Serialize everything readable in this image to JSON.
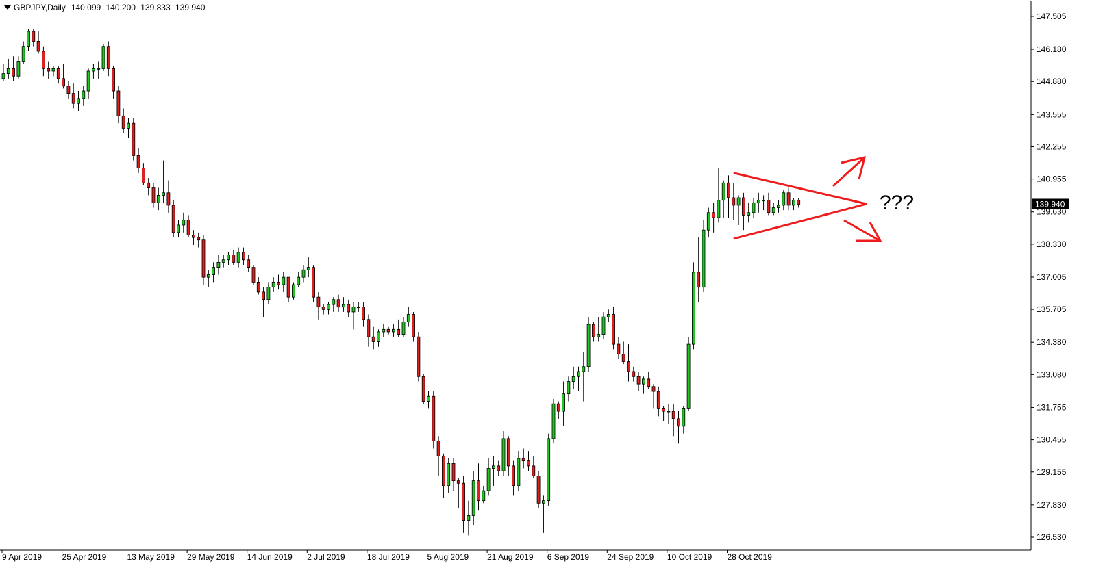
{
  "header": {
    "symbol": "GBPJPY,Daily",
    "open": "140.099",
    "high": "140.200",
    "low": "139.833",
    "close": "139.940"
  },
  "annotation_text": "???",
  "current_price_label": "139.940",
  "colors": {
    "up_body": "#22c822",
    "down_body": "#dd2020",
    "wick": "#000000",
    "annotation": "#ee1c1c",
    "price_tag_bg": "#000000"
  },
  "chart_data": {
    "type": "candlestick",
    "symbol": "GBPJPY",
    "timeframe": "Daily",
    "ylim": [
      126.3,
      147.9
    ],
    "y_ticks": [
      "147.505",
      "146.180",
      "144.880",
      "143.555",
      "142.255",
      "140.955",
      "139.630",
      "138.330",
      "137.005",
      "135.705",
      "134.380",
      "133.080",
      "131.755",
      "130.455",
      "129.155",
      "127.830",
      "126.530"
    ],
    "x_tick_labels": [
      "9 Apr 2019",
      "25 Apr 2019",
      "13 May 2019",
      "29 May 2019",
      "14 Jun 2019",
      "2 Jul 2019",
      "18 Jul 2019",
      "5 Aug 2019",
      "21 Aug 2019",
      "6 Sep 2019",
      "24 Sep 2019",
      "10 Oct 2019",
      "28 Oct 2019"
    ],
    "x_tick_candle_index": [
      0,
      12,
      25,
      37,
      49,
      61,
      73,
      85,
      97,
      109,
      121,
      133,
      145
    ],
    "candles": [
      [
        145.0,
        145.6,
        144.9,
        145.2
      ],
      [
        145.2,
        145.8,
        145.0,
        145.4
      ],
      [
        145.4,
        145.9,
        144.9,
        145.1
      ],
      [
        145.1,
        145.9,
        145.0,
        145.7
      ],
      [
        145.7,
        146.5,
        145.6,
        146.3
      ],
      [
        146.3,
        147.0,
        146.1,
        146.9
      ],
      [
        146.9,
        147.0,
        146.3,
        146.5
      ],
      [
        146.5,
        146.9,
        146.0,
        146.1
      ],
      [
        146.1,
        146.3,
        145.1,
        145.4
      ],
      [
        145.4,
        145.7,
        145.0,
        145.3
      ],
      [
        145.3,
        145.5,
        145.1,
        145.4
      ],
      [
        145.4,
        145.5,
        144.8,
        145.0
      ],
      [
        145.0,
        145.6,
        144.6,
        144.7
      ],
      [
        144.7,
        144.9,
        144.2,
        144.4
      ],
      [
        144.4,
        144.8,
        143.8,
        144.0
      ],
      [
        144.0,
        144.5,
        143.7,
        144.2
      ],
      [
        144.2,
        144.7,
        143.9,
        144.5
      ],
      [
        144.5,
        145.4,
        144.2,
        145.3
      ],
      [
        145.3,
        145.6,
        145.0,
        145.4
      ],
      [
        145.4,
        145.7,
        145.0,
        145.4
      ],
      [
        145.4,
        146.4,
        145.3,
        146.3
      ],
      [
        146.3,
        146.5,
        145.1,
        145.4
      ],
      [
        145.4,
        145.5,
        144.2,
        144.5
      ],
      [
        144.5,
        144.7,
        143.2,
        143.5
      ],
      [
        143.5,
        143.8,
        142.8,
        143.0
      ],
      [
        143.0,
        143.4,
        142.6,
        143.2
      ],
      [
        143.2,
        143.4,
        141.7,
        141.9
      ],
      [
        141.9,
        142.2,
        141.2,
        141.4
      ],
      [
        141.4,
        141.6,
        140.7,
        140.8
      ],
      [
        140.8,
        141.0,
        140.3,
        140.6
      ],
      [
        140.6,
        140.8,
        139.8,
        140.0
      ],
      [
        140.0,
        140.6,
        139.7,
        140.3
      ],
      [
        140.3,
        141.7,
        140.0,
        140.4
      ],
      [
        140.4,
        140.9,
        139.6,
        139.9
      ],
      [
        139.9,
        140.1,
        138.6,
        138.8
      ],
      [
        138.8,
        139.3,
        138.6,
        139.1
      ],
      [
        139.1,
        139.6,
        138.8,
        139.3
      ],
      [
        139.3,
        139.5,
        138.6,
        138.7
      ],
      [
        138.7,
        138.9,
        138.3,
        138.6
      ],
      [
        138.6,
        138.8,
        138.2,
        138.5
      ],
      [
        138.5,
        138.7,
        136.7,
        137.0
      ],
      [
        137.0,
        137.3,
        136.6,
        137.1
      ],
      [
        137.1,
        137.6,
        136.8,
        137.4
      ],
      [
        137.4,
        137.9,
        137.1,
        137.6
      ],
      [
        137.6,
        137.9,
        137.4,
        137.7
      ],
      [
        137.7,
        138.0,
        137.5,
        137.9
      ],
      [
        137.9,
        138.1,
        137.5,
        137.6
      ],
      [
        137.6,
        138.2,
        137.4,
        138.0
      ],
      [
        138.0,
        138.2,
        137.5,
        137.7
      ],
      [
        137.7,
        137.9,
        137.2,
        137.4
      ],
      [
        137.4,
        137.5,
        136.7,
        136.8
      ],
      [
        136.8,
        137.0,
        136.3,
        136.4
      ],
      [
        136.4,
        136.6,
        135.4,
        136.1
      ],
      [
        136.1,
        136.8,
        135.9,
        136.6
      ],
      [
        136.6,
        137.0,
        136.4,
        136.8
      ],
      [
        136.8,
        137.1,
        136.5,
        136.7
      ],
      [
        136.7,
        137.2,
        136.4,
        137.0
      ],
      [
        137.0,
        137.0,
        136.0,
        136.2
      ],
      [
        136.2,
        136.8,
        136.1,
        136.7
      ],
      [
        136.7,
        137.2,
        136.6,
        137.0
      ],
      [
        137.0,
        137.5,
        136.8,
        137.3
      ],
      [
        137.3,
        137.8,
        137.0,
        137.4
      ],
      [
        137.4,
        137.5,
        136.0,
        136.2
      ],
      [
        136.2,
        136.4,
        135.3,
        135.8
      ],
      [
        135.8,
        135.9,
        135.5,
        135.7
      ],
      [
        135.7,
        136.0,
        135.5,
        135.9
      ],
      [
        135.9,
        136.2,
        135.6,
        136.1
      ],
      [
        136.1,
        136.3,
        135.6,
        135.8
      ],
      [
        135.8,
        136.2,
        135.6,
        135.9
      ],
      [
        135.9,
        136.1,
        135.4,
        135.6
      ],
      [
        135.6,
        136.0,
        134.9,
        135.8
      ],
      [
        135.8,
        136.0,
        135.6,
        135.8
      ],
      [
        135.8,
        136.0,
        135.0,
        135.3
      ],
      [
        135.3,
        135.5,
        134.2,
        134.6
      ],
      [
        134.6,
        135.0,
        134.1,
        134.4
      ],
      [
        134.4,
        134.9,
        134.2,
        134.8
      ],
      [
        134.8,
        135.1,
        134.6,
        134.9
      ],
      [
        134.9,
        135.0,
        134.7,
        134.8
      ],
      [
        134.8,
        135.1,
        134.6,
        134.9
      ],
      [
        134.9,
        135.3,
        134.6,
        134.7
      ],
      [
        134.7,
        135.4,
        134.6,
        135.2
      ],
      [
        135.2,
        135.8,
        135.0,
        135.5
      ],
      [
        135.5,
        135.6,
        134.4,
        134.6
      ],
      [
        134.6,
        134.8,
        132.8,
        133.0
      ],
      [
        133.0,
        133.1,
        131.9,
        132.0
      ],
      [
        132.0,
        132.4,
        131.7,
        132.2
      ],
      [
        132.2,
        132.4,
        130.1,
        130.4
      ],
      [
        130.4,
        130.6,
        129.0,
        129.8
      ],
      [
        129.8,
        129.9,
        128.1,
        128.6
      ],
      [
        128.6,
        129.7,
        128.3,
        129.5
      ],
      [
        129.5,
        129.7,
        128.4,
        128.8
      ],
      [
        128.8,
        128.9,
        127.7,
        128.7
      ],
      [
        128.7,
        129.0,
        126.7,
        127.2
      ],
      [
        127.2,
        128.0,
        126.6,
        127.4
      ],
      [
        127.4,
        129.2,
        127.0,
        128.8
      ],
      [
        128.8,
        129.5,
        127.6,
        128.0
      ],
      [
        128.0,
        128.6,
        127.9,
        128.4
      ],
      [
        128.4,
        129.7,
        128.2,
        129.3
      ],
      [
        129.3,
        129.8,
        128.6,
        129.4
      ],
      [
        129.4,
        129.6,
        129.0,
        129.2
      ],
      [
        129.2,
        130.8,
        129.0,
        130.5
      ],
      [
        130.5,
        130.6,
        129.0,
        129.4
      ],
      [
        129.4,
        129.6,
        128.2,
        128.6
      ],
      [
        128.6,
        130.0,
        128.4,
        129.7
      ],
      [
        129.7,
        130.1,
        129.3,
        129.6
      ],
      [
        129.6,
        130.0,
        129.2,
        129.4
      ],
      [
        129.4,
        129.8,
        128.9,
        129.0
      ],
      [
        129.0,
        129.2,
        127.7,
        127.9
      ],
      [
        127.9,
        128.2,
        126.7,
        128.0
      ],
      [
        128.0,
        130.7,
        127.8,
        130.5
      ],
      [
        130.5,
        132.1,
        130.3,
        131.9
      ],
      [
        131.9,
        132.0,
        131.3,
        131.6
      ],
      [
        131.6,
        132.8,
        131.0,
        132.3
      ],
      [
        132.3,
        133.0,
        132.0,
        132.8
      ],
      [
        132.8,
        133.4,
        132.5,
        133.0
      ],
      [
        133.0,
        133.4,
        132.4,
        133.2
      ],
      [
        133.2,
        134.0,
        132.0,
        133.4
      ],
      [
        133.4,
        135.4,
        133.2,
        135.1
      ],
      [
        135.1,
        135.2,
        134.4,
        134.6
      ],
      [
        134.6,
        135.4,
        134.4,
        134.7
      ],
      [
        134.7,
        135.6,
        134.5,
        135.4
      ],
      [
        135.4,
        135.7,
        135.2,
        135.5
      ],
      [
        135.5,
        135.8,
        134.1,
        134.3
      ],
      [
        134.3,
        134.6,
        133.7,
        133.9
      ],
      [
        133.9,
        134.4,
        133.5,
        133.6
      ],
      [
        133.6,
        134.3,
        132.8,
        133.2
      ],
      [
        133.2,
        133.4,
        132.8,
        133.0
      ],
      [
        133.0,
        133.2,
        132.4,
        132.7
      ],
      [
        132.7,
        133.0,
        132.3,
        132.9
      ],
      [
        132.9,
        133.2,
        132.5,
        132.6
      ],
      [
        132.6,
        132.7,
        131.7,
        132.4
      ],
      [
        132.4,
        132.6,
        131.4,
        131.7
      ],
      [
        131.7,
        131.8,
        131.2,
        131.6
      ],
      [
        131.6,
        131.9,
        131.1,
        131.6
      ],
      [
        131.6,
        131.9,
        130.6,
        131.3
      ],
      [
        131.3,
        131.6,
        130.3,
        131.0
      ],
      [
        131.0,
        131.8,
        130.7,
        131.7
      ],
      [
        131.7,
        134.6,
        131.6,
        134.3
      ],
      [
        134.3,
        137.6,
        134.1,
        137.2
      ],
      [
        137.2,
        138.6,
        136.0,
        136.6
      ],
      [
        136.6,
        139.3,
        136.4,
        138.9
      ],
      [
        138.9,
        139.8,
        138.6,
        139.6
      ],
      [
        139.6,
        140.0,
        138.8,
        139.4
      ],
      [
        139.4,
        141.4,
        139.2,
        140.1
      ],
      [
        140.1,
        140.9,
        139.4,
        140.8
      ],
      [
        140.8,
        141.1,
        139.4,
        140.2
      ],
      [
        140.2,
        140.8,
        139.3,
        139.9
      ],
      [
        139.9,
        140.3,
        139.1,
        140.2
      ],
      [
        140.2,
        140.4,
        138.9,
        139.5
      ],
      [
        139.5,
        140.0,
        139.2,
        139.6
      ],
      [
        139.6,
        140.2,
        139.4,
        140.0
      ],
      [
        140.0,
        140.4,
        139.6,
        140.1
      ],
      [
        140.1,
        140.3,
        139.7,
        140.1
      ],
      [
        140.1,
        140.4,
        139.5,
        139.6
      ],
      [
        139.6,
        140.0,
        139.5,
        139.8
      ],
      [
        139.8,
        140.1,
        139.6,
        139.9
      ],
      [
        139.9,
        140.5,
        139.7,
        140.4
      ],
      [
        140.4,
        140.6,
        139.7,
        139.9
      ],
      [
        139.9,
        140.2,
        139.7,
        140.1
      ],
      [
        140.1,
        140.2,
        139.8,
        139.94
      ]
    ]
  }
}
